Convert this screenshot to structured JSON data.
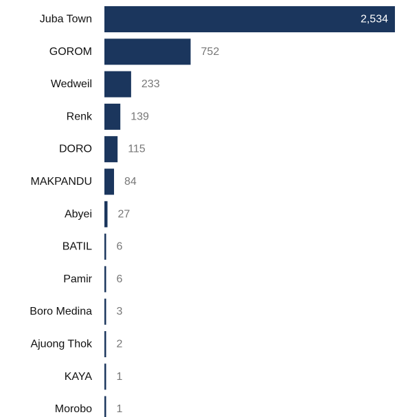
{
  "chart_data": {
    "type": "bar",
    "orientation": "horizontal",
    "title": "",
    "xlabel": "",
    "ylabel": "",
    "categories": [
      "Juba Town",
      "GOROM",
      "Wedweil",
      "Renk",
      "DORO",
      "MAKPANDU",
      "Abyei",
      "BATIL",
      "Pamir",
      "Boro Medina",
      "Ajuong Thok",
      "KAYA",
      "Morobo"
    ],
    "values": [
      2534,
      752,
      233,
      139,
      115,
      84,
      27,
      6,
      6,
      3,
      2,
      1,
      1
    ],
    "value_labels": [
      "2,534",
      "752",
      "233",
      "139",
      "115",
      "84",
      "27",
      "6",
      "6",
      "3",
      "2",
      "1",
      "1"
    ],
    "xlim": [
      0,
      2534
    ],
    "grid": false,
    "bar_color": "#1b365d",
    "label_color_outside": "#777777",
    "label_color_inside": "#ffffff"
  }
}
